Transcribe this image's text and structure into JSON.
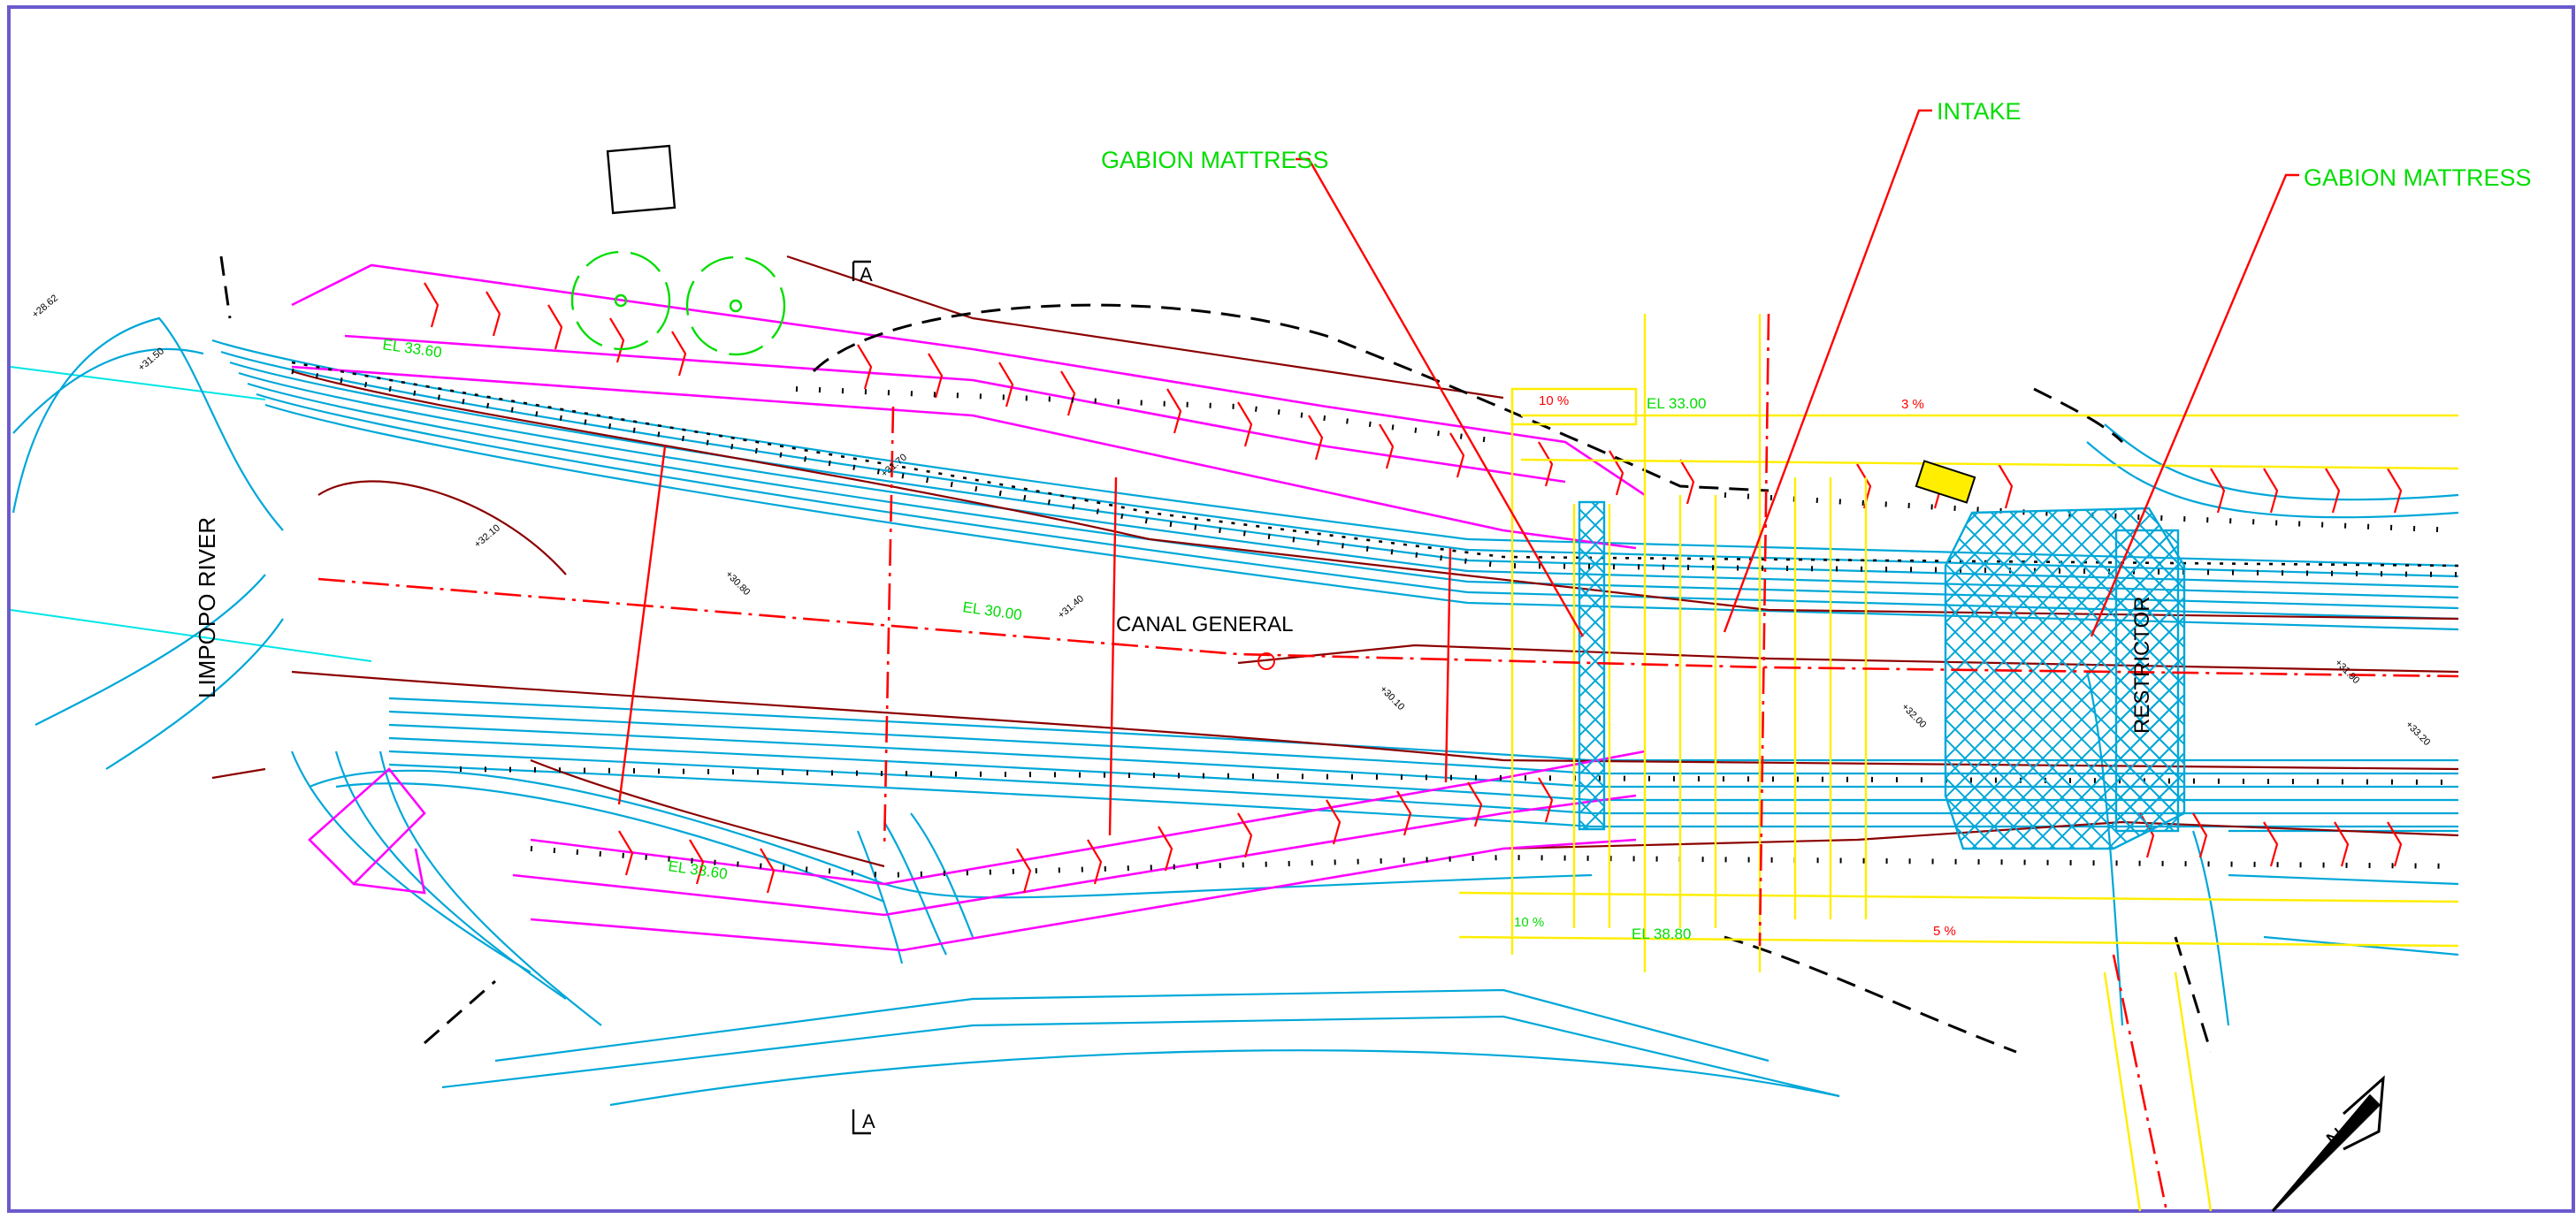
{
  "drawing": {
    "callouts": {
      "gabion_left": "GABION MATTRESS",
      "intake": "INTAKE",
      "gabion_right": "GABION MATTRESS"
    },
    "labels": {
      "river": "LIMPOPO RIVER",
      "canal": "CANAL GENERAL",
      "restrictor": "RESTRICTOR",
      "section_top": "A",
      "section_bottom": "A",
      "north": "N"
    },
    "elevations": {
      "el_top_left": "EL 33.60",
      "el_mid": "EL 30.00",
      "el_intake": "EL 33.00",
      "el_bottom_left": "EL 33.60",
      "el_bottom_right": "EL 38.80",
      "slope_1": "10 %",
      "slope_2": "3 %",
      "slope_3": "10 %",
      "slope_4": "5 %"
    },
    "colors": {
      "border": "#6a5acd",
      "contour": "#00a7d8",
      "river_line": "#00e5e5",
      "callout": "#00dd00",
      "leader": "#ff0000",
      "embankment": "#ff00ff",
      "road": "#ffee00",
      "terrain": "#8b0000",
      "hatch": "#00a7d8"
    }
  }
}
